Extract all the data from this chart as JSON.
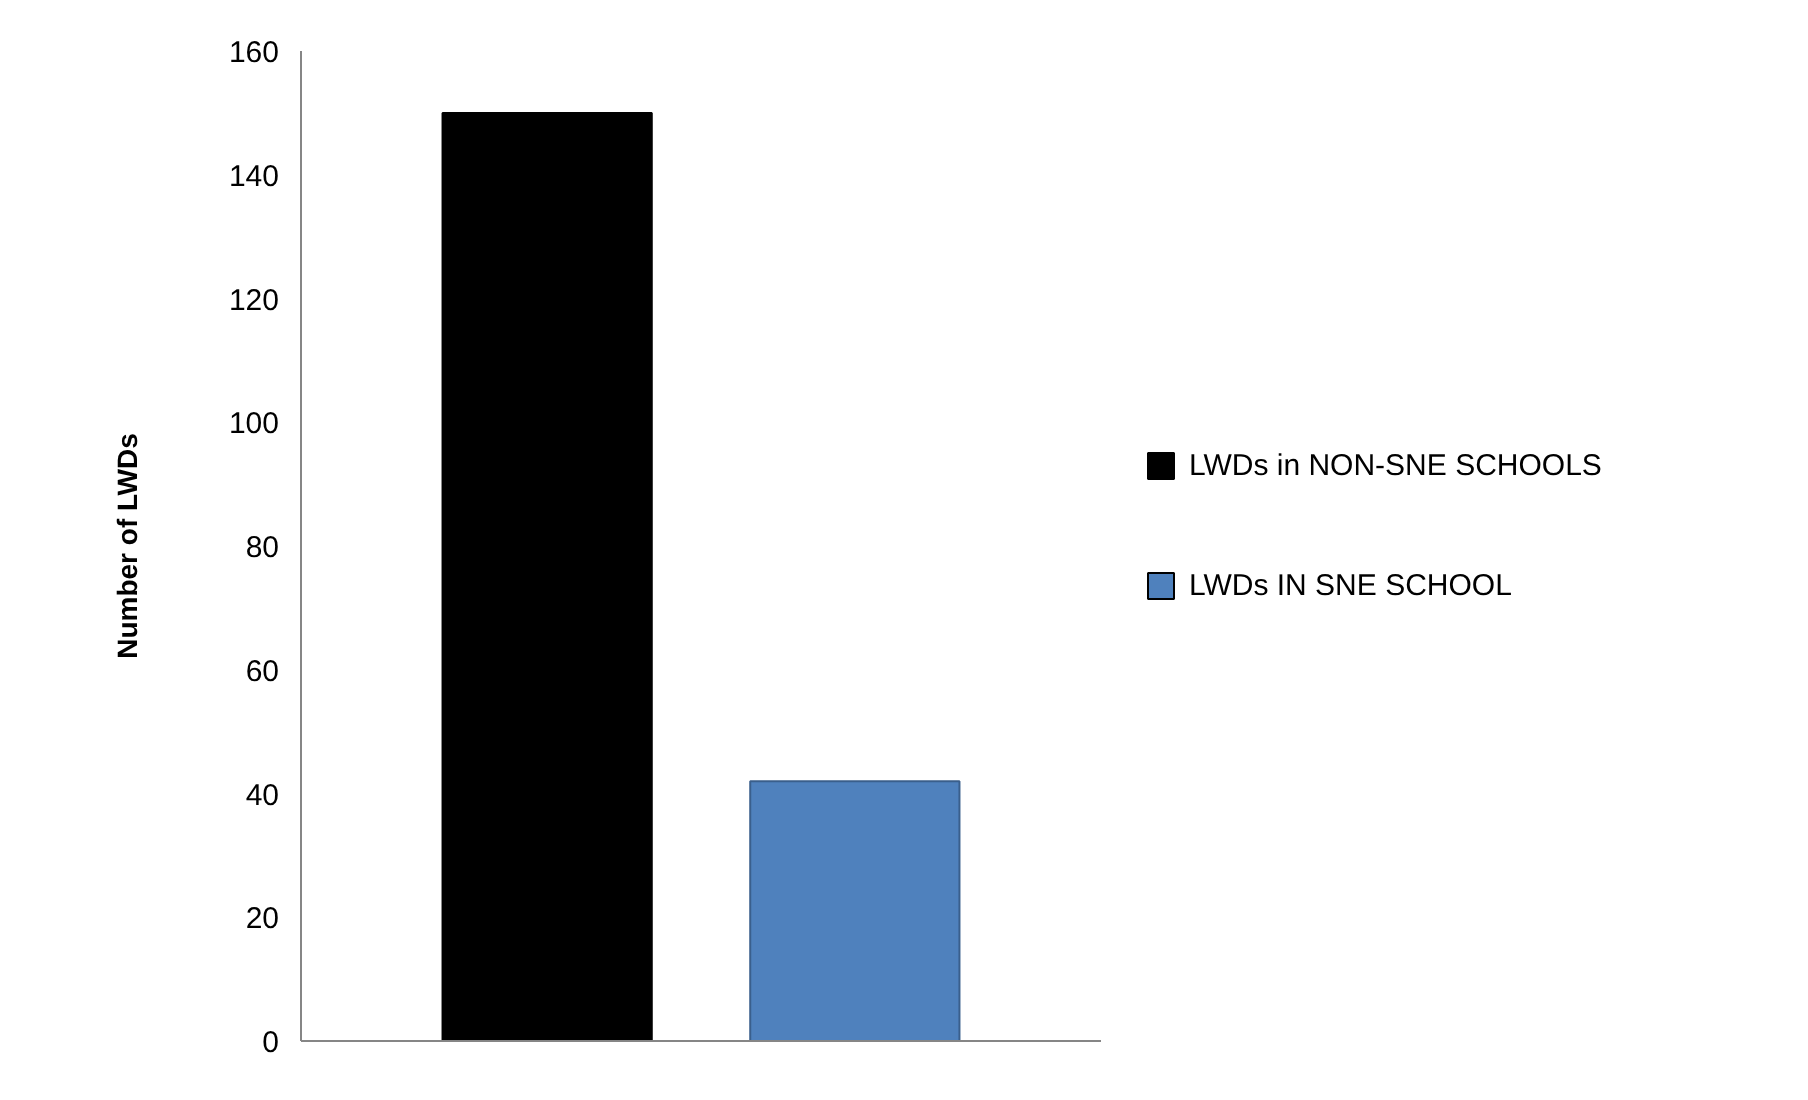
{
  "chart_data": {
    "type": "bar",
    "ylabel": "Number of LWDs",
    "categories": [
      null,
      null
    ],
    "series": [
      {
        "name": "LWDs in NON-SNE SCHOOLS",
        "color": "#000000",
        "values": [
          150,
          null
        ]
      },
      {
        "name": "LWDs IN SNE SCHOOL",
        "color": "#4f81bd",
        "values": [
          null,
          42
        ]
      }
    ],
    "ylim": [
      0,
      160
    ],
    "yticks": [
      0,
      20,
      40,
      60,
      80,
      100,
      120,
      140,
      160
    ],
    "grid": false,
    "legend": "right"
  }
}
